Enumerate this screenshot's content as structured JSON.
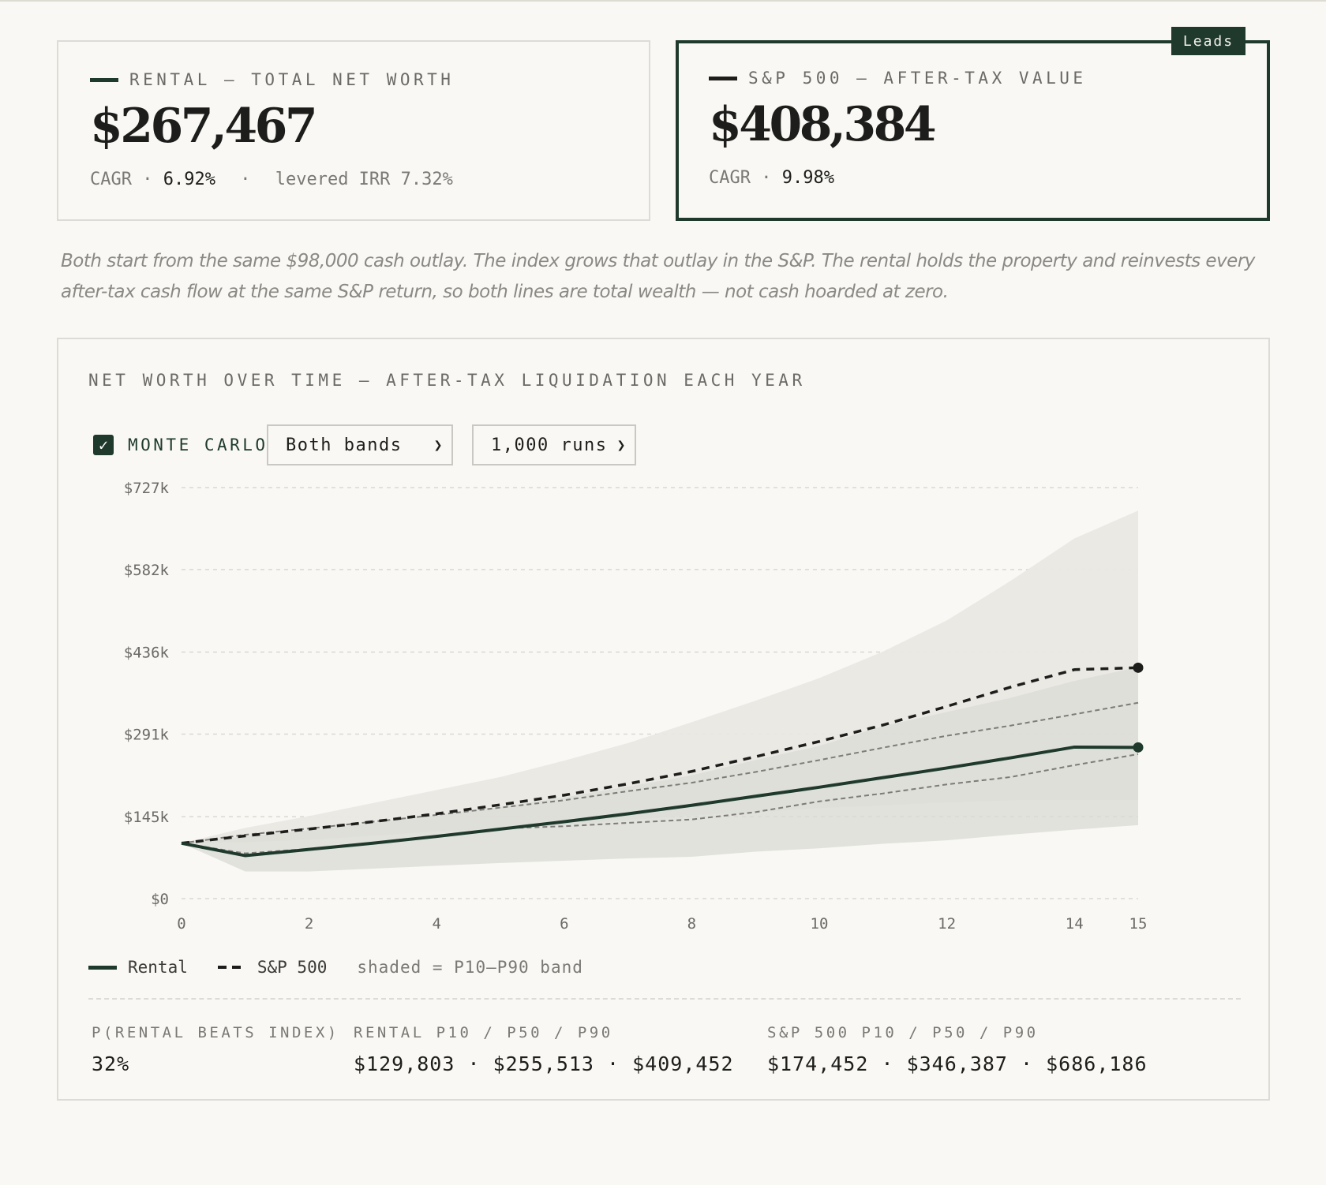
{
  "cards": {
    "rental": {
      "label": "RENTAL — TOTAL NET WORTH",
      "value": "$267,467",
      "cagr_label": "CAGR ·",
      "cagr": "6.92%",
      "sep": "·",
      "irr_label": "levered IRR",
      "irr": "7.32%"
    },
    "sp500": {
      "label": "S&P 500 — AFTER-TAX VALUE",
      "value": "$408,384",
      "cagr_label": "CAGR ·",
      "cagr": "9.98%",
      "badge": "Leads"
    }
  },
  "note": "Both start from the same $98,000 cash outlay. The index grows that outlay in the S&P. The rental holds the property and reinvests every after-tax cash flow at the same S&P return, so both lines are total wealth — not cash hoarded at zero.",
  "chart_panel": {
    "title": "NET WORTH OVER TIME — AFTER-TAX LIQUIDATION EACH YEAR",
    "monte_carlo_label": "MONTE CARLO",
    "monte_carlo_checked": true,
    "band_select": "Both bands",
    "runs_select": "1,000 runs"
  },
  "colors": {
    "rental": "#1f3a2d",
    "sp500": "#1d1d1b",
    "band_sp": "#e9e8e3",
    "band_rental": "#d9dbd5",
    "background": "#f9f8f4"
  },
  "chart_data": {
    "type": "line",
    "xlim": [
      0,
      15
    ],
    "ylim": [
      0,
      727000
    ],
    "x_ticks": [
      0,
      2,
      4,
      6,
      8,
      10,
      12,
      14,
      15
    ],
    "y_ticks": [
      0,
      145000,
      291000,
      436000,
      582000,
      727000
    ],
    "y_tick_labels": [
      "$0",
      "$145k",
      "$291k",
      "$436k",
      "$582k",
      "$727k"
    ],
    "grid": true,
    "x": [
      0,
      1,
      2,
      3,
      4,
      5,
      6,
      7,
      8,
      9,
      10,
      11,
      12,
      13,
      14,
      15
    ],
    "series": [
      {
        "name": "Rental",
        "style": "solid",
        "values": [
          98000,
          76000,
          87000,
          98000,
          110000,
          123000,
          136000,
          150000,
          165000,
          181000,
          197000,
          214000,
          231000,
          249000,
          268000,
          267467
        ],
        "p10": [
          98000,
          48000,
          48000,
          53000,
          58000,
          63000,
          67000,
          71000,
          74000,
          83000,
          89000,
          97000,
          103000,
          113000,
          122000,
          130000
        ],
        "p50": [
          98000,
          80000,
          88000,
          98000,
          110000,
          124000,
          128000,
          134000,
          140000,
          153000,
          172000,
          186000,
          202000,
          215000,
          236000,
          255513
        ],
        "p90": [
          98000,
          110000,
          121000,
          134000,
          147000,
          162000,
          179000,
          198000,
          218000,
          245000,
          270000,
          305000,
          330000,
          355000,
          385000,
          409452
        ]
      },
      {
        "name": "S&P 500",
        "style": "dashed",
        "values": [
          98000,
          111000,
          123000,
          136000,
          150000,
          166000,
          183000,
          203000,
          225000,
          251000,
          278000,
          307000,
          340000,
          374000,
          405000,
          408384
        ],
        "p10": [
          98000,
          100000,
          104000,
          111000,
          119000,
          124000,
          130000,
          139000,
          147000,
          153000,
          160000,
          165000,
          170000,
          174000,
          174452,
          174452
        ],
        "p50": [
          98000,
          113000,
          124000,
          136000,
          148000,
          161000,
          174000,
          190000,
          205000,
          224000,
          245000,
          267000,
          288000,
          306000,
          326000,
          346387
        ],
        "p90": [
          98000,
          125000,
          146000,
          169000,
          192000,
          215000,
          244000,
          275000,
          312000,
          350000,
          390000,
          437000,
          492000,
          562000,
          637000,
          686186
        ]
      }
    ],
    "legend": [
      "Rental",
      "S&P 500"
    ],
    "legend_placement": "bottom-left",
    "band_note": "shaded = P10–P90 band"
  },
  "stats": {
    "p_beats": {
      "label": "P(RENTAL BEATS INDEX)",
      "value": "32%"
    },
    "rental_pct": {
      "label": "RENTAL P10 / P50 / P90",
      "value": "$129,803 · $255,513 · $409,452"
    },
    "sp_pct": {
      "label": "S&P 500 P10 / P50 / P90",
      "value": "$174,452 · $346,387 · $686,186"
    }
  }
}
